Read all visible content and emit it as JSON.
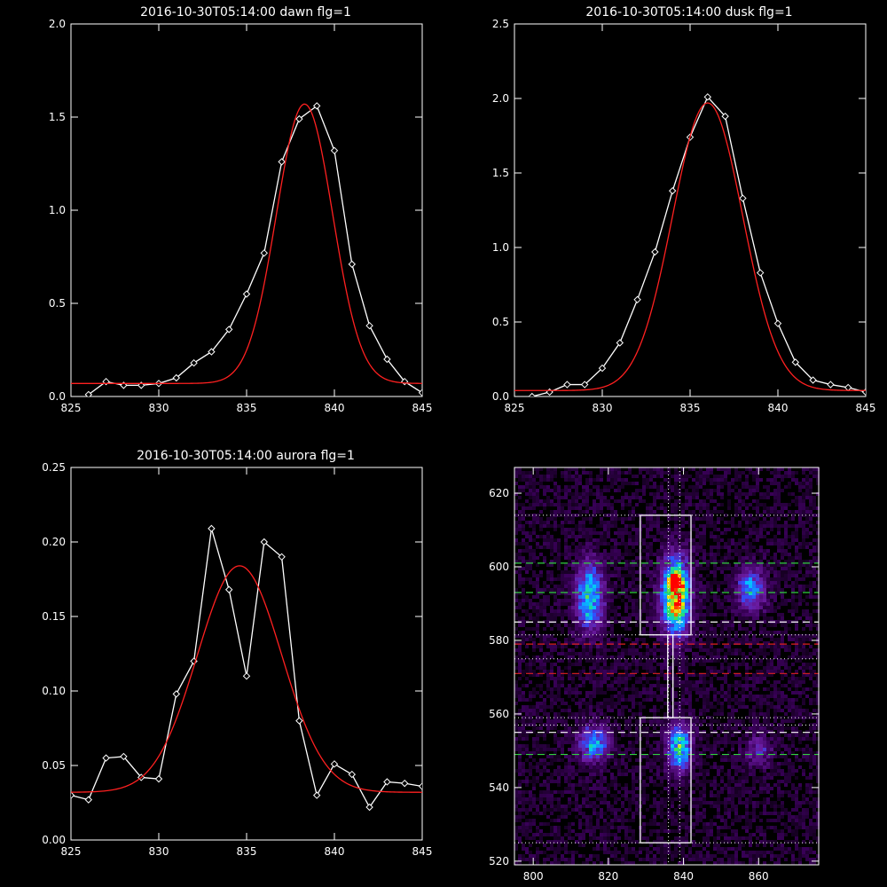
{
  "chart_data": [
    {
      "type": "line",
      "title": "2016-10-30T05:14:00 dawn flg=1",
      "xlim": [
        825,
        845
      ],
      "ylim": [
        0,
        2.0
      ],
      "xticks": [
        825,
        830,
        835,
        840,
        845
      ],
      "yticks": [
        0.0,
        0.5,
        1.0,
        1.5,
        2.0
      ],
      "xticklabels": [
        "825",
        "830",
        "835",
        "840",
        "845"
      ],
      "yticklabels": [
        "0.0",
        "0.5",
        "1.0",
        "1.5",
        "2.0"
      ],
      "series": [
        {
          "color": "#ffffff",
          "marker": "diamond",
          "x": [
            826,
            827,
            828,
            829,
            830,
            831,
            832,
            833,
            834,
            835,
            836,
            837,
            838,
            839,
            840,
            841,
            842,
            843,
            844,
            845
          ],
          "y": [
            0.01,
            0.08,
            0.06,
            0.06,
            0.07,
            0.1,
            0.18,
            0.24,
            0.36,
            0.55,
            0.77,
            1.26,
            1.49,
            1.56,
            1.32,
            0.71,
            0.38,
            0.2,
            0.08,
            0.02
          ]
        },
        {
          "color": "#ff2020",
          "marker": "none",
          "fit": "gaussian",
          "amp": 1.5,
          "center": 838.3,
          "sigma": 1.6,
          "base": 0.07
        }
      ],
      "grid": false
    },
    {
      "type": "line",
      "title": "2016-10-30T05:14:00 dusk flg=1",
      "xlim": [
        825,
        845
      ],
      "ylim": [
        0,
        2.5
      ],
      "xticks": [
        825,
        830,
        835,
        840,
        845
      ],
      "yticks": [
        0.0,
        0.5,
        1.0,
        1.5,
        2.0,
        2.5
      ],
      "xticklabels": [
        "825",
        "830",
        "835",
        "840",
        "845"
      ],
      "yticklabels": [
        "0.0",
        "0.5",
        "1.0",
        "1.5",
        "2.0",
        "2.5"
      ],
      "series": [
        {
          "color": "#ffffff",
          "marker": "diamond",
          "x": [
            826,
            827,
            828,
            829,
            830,
            831,
            832,
            833,
            834,
            835,
            836,
            837,
            838,
            839,
            840,
            841,
            842,
            843,
            844,
            845
          ],
          "y": [
            0.0,
            0.03,
            0.08,
            0.08,
            0.19,
            0.36,
            0.65,
            0.97,
            1.38,
            1.74,
            2.01,
            1.88,
            1.33,
            0.83,
            0.49,
            0.23,
            0.11,
            0.08,
            0.06,
            0.03
          ]
        },
        {
          "color": "#ff2020",
          "marker": "none",
          "fit": "gaussian",
          "amp": 1.93,
          "center": 836.0,
          "sigma": 2.0,
          "base": 0.04
        }
      ],
      "grid": false
    },
    {
      "type": "line",
      "title": "2016-10-30T05:14:00 aurora flg=1",
      "xlim": [
        825,
        845
      ],
      "ylim": [
        0,
        0.25
      ],
      "xticks": [
        825,
        830,
        835,
        840,
        845
      ],
      "yticks": [
        0.0,
        0.05,
        0.1,
        0.15,
        0.2,
        0.25
      ],
      "xticklabels": [
        "825",
        "830",
        "835",
        "840",
        "845"
      ],
      "yticklabels": [
        "0.00",
        "0.05",
        "0.10",
        "0.15",
        "0.20",
        "0.25"
      ],
      "series": [
        {
          "color": "#ffffff",
          "marker": "diamond",
          "x": [
            825,
            826,
            827,
            828,
            829,
            830,
            831,
            832,
            833,
            834,
            835,
            836,
            837,
            838,
            839,
            840,
            841,
            842,
            843,
            844,
            845
          ],
          "y": [
            0.03,
            0.027,
            0.055,
            0.056,
            0.042,
            0.041,
            0.098,
            0.12,
            0.209,
            0.168,
            0.11,
            0.2,
            0.19,
            0.08,
            0.03,
            0.051,
            0.044,
            0.022,
            0.039,
            0.038,
            0.036
          ]
        },
        {
          "color": "#ff2020",
          "marker": "none",
          "fit": "gaussian",
          "amp": 0.152,
          "center": 834.6,
          "sigma": 2.4,
          "base": 0.032
        }
      ],
      "grid": false
    },
    {
      "type": "heatmap",
      "title": "",
      "xlim": [
        795,
        876
      ],
      "ylim": [
        519,
        627
      ],
      "xticks": [
        800,
        820,
        840,
        860
      ],
      "yticks": [
        520,
        540,
        560,
        580,
        600,
        620
      ],
      "xticklabels": [
        "800",
        "820",
        "840",
        "860"
      ],
      "yticklabels": [
        "520",
        "540",
        "560",
        "580",
        "600",
        "620"
      ],
      "colormap": [
        "#000000",
        "#3a005a",
        "#6a1ba0",
        "#2f4fff",
        "#00c8ff",
        "#30e060",
        "#ffe000",
        "#ff0000"
      ],
      "blobs": [
        {
          "x": 815,
          "y": 592,
          "sx": 2.5,
          "sy": 6.5,
          "amp": 0.55
        },
        {
          "x": 838,
          "y": 592,
          "sx": 2.6,
          "sy": 7.0,
          "amp": 0.9
        },
        {
          "x": 838,
          "y": 596,
          "sx": 1.2,
          "sy": 1.5,
          "amp": 0.45
        },
        {
          "x": 858,
          "y": 594,
          "sx": 2.6,
          "sy": 4.0,
          "amp": 0.45
        },
        {
          "x": 816,
          "y": 552,
          "sx": 2.8,
          "sy": 3.5,
          "amp": 0.45
        },
        {
          "x": 839,
          "y": 551,
          "sx": 2.2,
          "sy": 4.5,
          "amp": 0.6
        },
        {
          "x": 860,
          "y": 550,
          "sx": 2.4,
          "sy": 3.0,
          "amp": 0.25
        }
      ],
      "boxes": [
        {
          "x0": 828.5,
          "x1": 842,
          "y0": 581.5,
          "y1": 614
        },
        {
          "x0": 828.5,
          "x1": 842,
          "y0": 525,
          "y1": 559
        },
        {
          "x0": 835.8,
          "x1": 837.2,
          "y0": 559,
          "y1": 581.5
        }
      ],
      "hlines_green": [
        601,
        593,
        549
      ],
      "hlines_white_dashed": [
        585,
        555
      ],
      "hlines_red_dashed": [
        579,
        571
      ],
      "hlines_dotted": [
        614,
        581.5,
        575,
        559,
        557,
        525
      ],
      "vlines_dotted": [
        836,
        839
      ],
      "grid": false
    }
  ]
}
